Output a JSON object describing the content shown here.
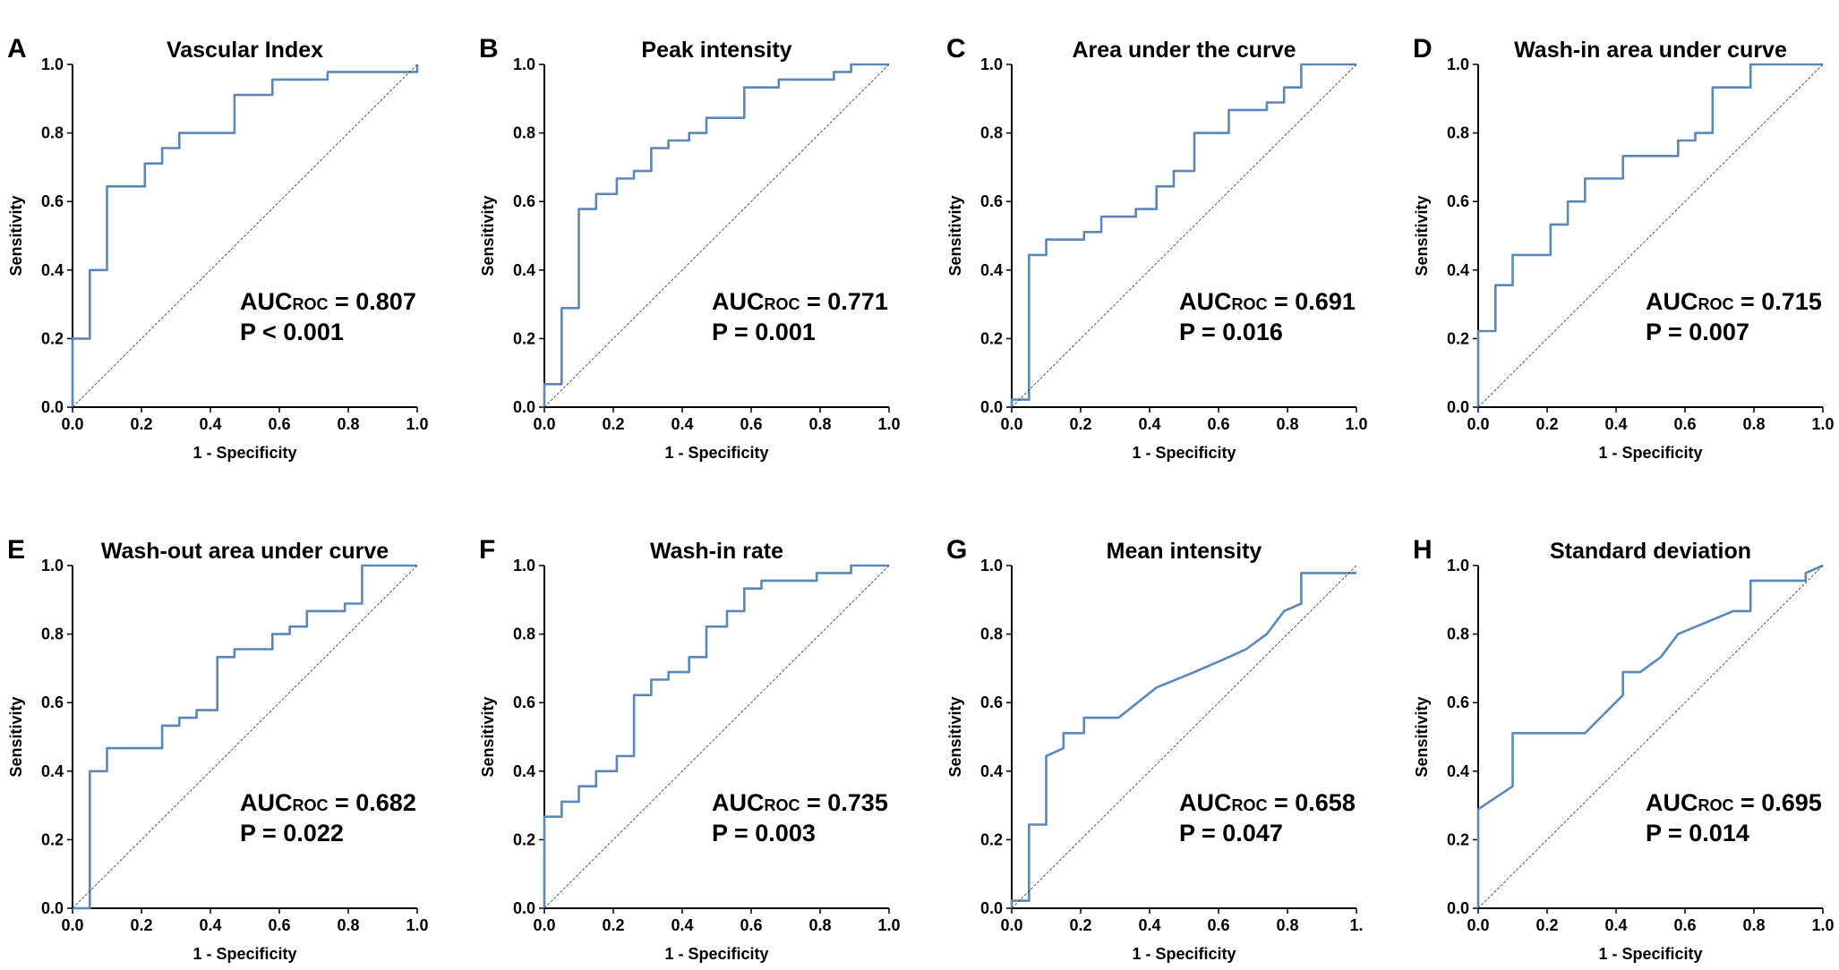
{
  "chart_data": [
    {
      "type": "line",
      "panel": "A",
      "title": "Vascular Index",
      "xlabel": "1 - Specificity",
      "ylabel": "Sensitivity",
      "xlim": [
        0,
        1
      ],
      "ylim": [
        0,
        1
      ],
      "xticks": [
        "0.0",
        "0.2",
        "0.4",
        "0.6",
        "0.8",
        "1.0"
      ],
      "yticks": [
        "0.0",
        "0.2",
        "0.4",
        "0.6",
        "0.8",
        "1.0"
      ],
      "auc_label": "AUC",
      "auc_sub": "ROC",
      "auc_value": " = 0.807",
      "p_text": "P < 0.001",
      "series": [
        {
          "name": "ROC curve",
          "x": [
            0,
            0,
            0.05,
            0.05,
            0.1,
            0.1,
            0.21,
            0.21,
            0.26,
            0.26,
            0.31,
            0.31,
            0.47,
            0.47,
            0.58,
            0.58,
            0.74,
            0.74,
            1.0,
            1.0
          ],
          "y": [
            0,
            0.2,
            0.2,
            0.4,
            0.4,
            0.644,
            0.644,
            0.711,
            0.711,
            0.756,
            0.756,
            0.8,
            0.8,
            0.911,
            0.911,
            0.956,
            0.956,
            0.978,
            0.978,
            1.0
          ]
        },
        {
          "name": "Reference",
          "x": [
            0,
            1
          ],
          "y": [
            0,
            1
          ]
        }
      ]
    },
    {
      "type": "line",
      "panel": "B",
      "title": "Peak intensity",
      "xlabel": "1 - Specificity",
      "ylabel": "Sensitivity",
      "xlim": [
        0,
        1
      ],
      "ylim": [
        0,
        1
      ],
      "xticks": [
        "0.0",
        "0.2",
        "0.4",
        "0.6",
        "0.8",
        "1.0"
      ],
      "yticks": [
        "0.0",
        "0.2",
        "0.4",
        "0.6",
        "0.8",
        "1.0"
      ],
      "auc_label": "AUC",
      "auc_sub": "ROC",
      "auc_value": " = 0.771",
      "p_text": "P = 0.001",
      "series": [
        {
          "name": "ROC curve",
          "x": [
            0,
            0,
            0.05,
            0.05,
            0.1,
            0.1,
            0.15,
            0.15,
            0.21,
            0.21,
            0.26,
            0.26,
            0.31,
            0.31,
            0.36,
            0.36,
            0.42,
            0.42,
            0.47,
            0.47,
            0.58,
            0.58,
            0.68,
            0.68,
            0.84,
            0.84,
            0.89,
            0.89,
            1.0
          ],
          "y": [
            0,
            0.067,
            0.067,
            0.289,
            0.289,
            0.578,
            0.578,
            0.622,
            0.622,
            0.667,
            0.667,
            0.689,
            0.689,
            0.756,
            0.756,
            0.778,
            0.778,
            0.8,
            0.8,
            0.844,
            0.844,
            0.933,
            0.933,
            0.956,
            0.956,
            0.978,
            0.978,
            1.0,
            1.0
          ]
        },
        {
          "name": "Reference",
          "x": [
            0,
            1
          ],
          "y": [
            0,
            1
          ]
        }
      ]
    },
    {
      "type": "line",
      "panel": "C",
      "title": "Area under the curve",
      "xlabel": "1 - Specificity",
      "ylabel": "Sensitivity",
      "xlim": [
        0,
        1
      ],
      "ylim": [
        0,
        1
      ],
      "xticks": [
        "0.0",
        "0.2",
        "0.4",
        "0.6",
        "0.8",
        "1.0"
      ],
      "yticks": [
        "0.0",
        "0.2",
        "0.4",
        "0.6",
        "0.8",
        "1.0"
      ],
      "auc_label": "AUC",
      "auc_sub": "ROC",
      "auc_value": " = 0.691",
      "p_text": "P = 0.016",
      "series": [
        {
          "name": "ROC curve",
          "x": [
            0,
            0,
            0.05,
            0.05,
            0.1,
            0.1,
            0.21,
            0.21,
            0.26,
            0.26,
            0.36,
            0.36,
            0.42,
            0.42,
            0.47,
            0.47,
            0.53,
            0.53,
            0.63,
            0.63,
            0.74,
            0.74,
            0.79,
            0.79,
            0.84,
            0.84,
            1.0
          ],
          "y": [
            0,
            0.022,
            0.022,
            0.444,
            0.444,
            0.489,
            0.489,
            0.511,
            0.511,
            0.556,
            0.556,
            0.578,
            0.578,
            0.644,
            0.644,
            0.689,
            0.689,
            0.8,
            0.8,
            0.867,
            0.867,
            0.889,
            0.889,
            0.933,
            0.933,
            1.0,
            1.0
          ]
        },
        {
          "name": "Reference",
          "x": [
            0,
            1
          ],
          "y": [
            0,
            1
          ]
        }
      ]
    },
    {
      "type": "line",
      "panel": "D",
      "title": "Wash-in area under curve",
      "xlabel": "1 - Specificity",
      "ylabel": "Sensitivity",
      "xlim": [
        0,
        1
      ],
      "ylim": [
        0,
        1
      ],
      "xticks": [
        "0.0",
        "0.2",
        "0.4",
        "0.6",
        "0.8",
        "1.0"
      ],
      "yticks": [
        "0.0",
        "0.2",
        "0.4",
        "0.6",
        "0.8",
        "1.0"
      ],
      "auc_label": "AUC",
      "auc_sub": "ROC",
      "auc_value": " = 0.715",
      "p_text": "P = 0.007",
      "series": [
        {
          "name": "ROC curve",
          "x": [
            0,
            0,
            0.05,
            0.05,
            0.1,
            0.1,
            0.21,
            0.21,
            0.26,
            0.26,
            0.31,
            0.31,
            0.42,
            0.42,
            0.58,
            0.58,
            0.63,
            0.63,
            0.68,
            0.68,
            0.79,
            0.79,
            1.0
          ],
          "y": [
            0,
            0.222,
            0.222,
            0.356,
            0.356,
            0.444,
            0.444,
            0.533,
            0.533,
            0.6,
            0.6,
            0.667,
            0.667,
            0.733,
            0.733,
            0.778,
            0.778,
            0.8,
            0.8,
            0.933,
            0.933,
            1.0,
            1.0
          ]
        },
        {
          "name": "Reference",
          "x": [
            0,
            1
          ],
          "y": [
            0,
            1
          ]
        }
      ]
    },
    {
      "type": "line",
      "panel": "E",
      "title": "Wash-out area under curve",
      "xlabel": "1 - Specificity",
      "ylabel": "Sensitivity",
      "xlim": [
        0,
        1
      ],
      "ylim": [
        0,
        1
      ],
      "xticks": [
        "0.0",
        "0.2",
        "0.4",
        "0.6",
        "0.8",
        "1.0"
      ],
      "yticks": [
        "0.0",
        "0.2",
        "0.4",
        "0.6",
        "0.8",
        "1.0"
      ],
      "auc_label": "AUC",
      "auc_sub": "ROC",
      "auc_value": " = 0.682",
      "p_text": "P = 0.022",
      "series": [
        {
          "name": "ROC curve",
          "x": [
            0,
            0.05,
            0.05,
            0.1,
            0.1,
            0.26,
            0.26,
            0.31,
            0.31,
            0.36,
            0.36,
            0.42,
            0.42,
            0.47,
            0.47,
            0.58,
            0.58,
            0.63,
            0.63,
            0.68,
            0.68,
            0.79,
            0.79,
            0.84,
            0.84,
            1.0
          ],
          "y": [
            0,
            0,
            0.4,
            0.4,
            0.467,
            0.467,
            0.533,
            0.533,
            0.556,
            0.556,
            0.578,
            0.578,
            0.733,
            0.733,
            0.756,
            0.756,
            0.8,
            0.8,
            0.822,
            0.822,
            0.867,
            0.867,
            0.889,
            0.889,
            1.0,
            1.0
          ]
        },
        {
          "name": "Reference",
          "x": [
            0,
            1
          ],
          "y": [
            0,
            1
          ]
        }
      ]
    },
    {
      "type": "line",
      "panel": "F",
      "title": "Wash-in rate",
      "xlabel": "1 - Specificity",
      "ylabel": "Sensitivity",
      "xlim": [
        0,
        1
      ],
      "ylim": [
        0,
        1
      ],
      "xticks": [
        "0.0",
        "0.2",
        "0.4",
        "0.6",
        "0.8",
        "1.0"
      ],
      "yticks": [
        "0.0",
        "0.2",
        "0.4",
        "0.6",
        "0.8",
        "1.0"
      ],
      "auc_label": "AUC",
      "auc_sub": "ROC",
      "auc_value": " = 0.735",
      "p_text": "P = 0.003",
      "series": [
        {
          "name": "ROC curve",
          "x": [
            0,
            0,
            0.05,
            0.05,
            0.1,
            0.1,
            0.15,
            0.15,
            0.21,
            0.21,
            0.26,
            0.26,
            0.31,
            0.31,
            0.36,
            0.36,
            0.42,
            0.42,
            0.47,
            0.47,
            0.53,
            0.53,
            0.58,
            0.58,
            0.63,
            0.63,
            0.68,
            0.68,
            0.79,
            0.79,
            0.89,
            0.89,
            1.0
          ],
          "y": [
            0,
            0.267,
            0.267,
            0.311,
            0.311,
            0.356,
            0.356,
            0.4,
            0.4,
            0.444,
            0.444,
            0.622,
            0.622,
            0.667,
            0.667,
            0.689,
            0.689,
            0.733,
            0.733,
            0.822,
            0.822,
            0.867,
            0.867,
            0.933,
            0.933,
            0.956,
            0.956,
            0.956,
            0.956,
            0.978,
            0.978,
            1.0,
            1.0
          ]
        },
        {
          "name": "Reference",
          "x": [
            0,
            1
          ],
          "y": [
            0,
            1
          ]
        }
      ]
    },
    {
      "type": "line",
      "panel": "G",
      "title": "Mean intensity",
      "xlabel": "1 - Specificity",
      "ylabel": "Sensitivity",
      "xlim": [
        0,
        1
      ],
      "ylim": [
        0,
        1
      ],
      "xticks": [
        "0.0",
        "0.2",
        "0.4",
        "0.6",
        "0.8",
        "1."
      ],
      "yticks": [
        "0.0",
        "0.2",
        "0.4",
        "0.6",
        "0.8",
        "1.0"
      ],
      "auc_label": "AUC",
      "auc_sub": "ROC",
      "auc_value": " = 0.658",
      "p_text": "P = 0.047",
      "series": [
        {
          "name": "ROC curve",
          "x": [
            0,
            0,
            0.05,
            0.05,
            0.1,
            0.1,
            0.15,
            0.15,
            0.21,
            0.21,
            0.31,
            0.42,
            0.53,
            0.63,
            0.68,
            0.68,
            0.74,
            0.74,
            0.79,
            0.79,
            0.84,
            0.84,
            1.0
          ],
          "y": [
            0,
            0.022,
            0.022,
            0.244,
            0.244,
            0.444,
            0.467,
            0.511,
            0.511,
            0.556,
            0.556,
            0.644,
            0.689,
            0.733,
            0.756,
            0.756,
            0.8,
            0.8,
            0.867,
            0.867,
            0.889,
            0.978,
            0.978
          ]
        },
        {
          "name": "Reference",
          "x": [
            0,
            1
          ],
          "y": [
            0,
            1
          ]
        }
      ]
    },
    {
      "type": "line",
      "panel": "H",
      "title": "Standard deviation",
      "xlabel": "1 - Specificity",
      "ylabel": "Sensitivity",
      "xlim": [
        0,
        1
      ],
      "ylim": [
        0,
        1
      ],
      "xticks": [
        "0.0",
        "0.2",
        "0.4",
        "0.6",
        "0.8",
        "1.0"
      ],
      "yticks": [
        "0.0",
        "0.2",
        "0.4",
        "0.6",
        "0.8",
        "1.0"
      ],
      "auc_label": "AUC",
      "auc_sub": "ROC",
      "auc_value": " = 0.695",
      "p_text": "P = 0.014",
      "series": [
        {
          "name": "ROC curve",
          "x": [
            0,
            0,
            0.1,
            0.1,
            0.31,
            0.42,
            0.42,
            0.47,
            0.53,
            0.58,
            0.74,
            0.79,
            0.79,
            0.95,
            0.95,
            1.0
          ],
          "y": [
            0,
            0.289,
            0.356,
            0.511,
            0.511,
            0.622,
            0.689,
            0.689,
            0.733,
            0.8,
            0.867,
            0.867,
            0.956,
            0.956,
            0.978,
            1.0
          ]
        },
        {
          "name": "Reference",
          "x": [
            0,
            1
          ],
          "y": [
            0,
            1
          ]
        }
      ]
    }
  ]
}
